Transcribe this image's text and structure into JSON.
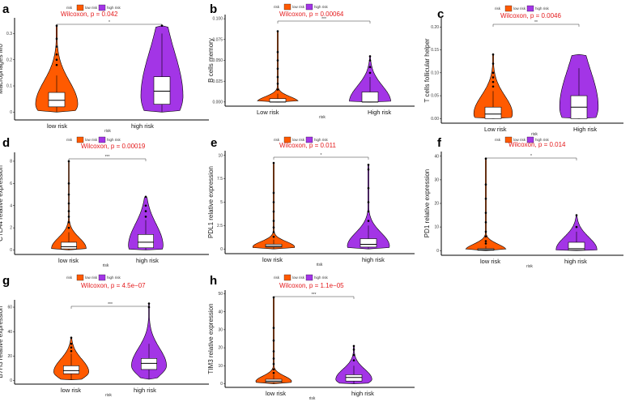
{
  "colors": {
    "low": "#ff5a00",
    "high": "#a335e6",
    "outline": "#000000",
    "pval": "#e41a1c",
    "axis": "#000000"
  },
  "legend": {
    "title": "risk",
    "low": "low risk",
    "high": "high risk"
  },
  "x_title": "risk",
  "chart_data": [
    {
      "panel": "a",
      "type": "violin",
      "ylabel": "Macrophages M0",
      "categories": [
        "low risk",
        "high risk"
      ],
      "yticks": [
        0.0,
        0.1,
        0.2,
        0.3
      ],
      "ylim": [
        -0.03,
        0.36
      ],
      "pvalue": "Wilcoxon, p = 0.042",
      "sig": "*",
      "series": [
        {
          "name": "low risk",
          "median": 0.045,
          "q1": 0.02,
          "q3": 0.075,
          "whisker": [
            0.0,
            0.14
          ],
          "max": 0.33,
          "min": 0.0,
          "mode": 0.03,
          "outliers": [
            0.18,
            0.2,
            0.22,
            0.25,
            0.28,
            0.33
          ]
        },
        {
          "name": "high risk",
          "median": 0.08,
          "q1": 0.03,
          "q3": 0.135,
          "whisker": [
            0.0,
            0.3
          ],
          "max": 0.33,
          "min": 0.0,
          "mode": 0.06,
          "outliers": [
            0.33
          ]
        }
      ]
    },
    {
      "panel": "b",
      "type": "violin",
      "ylabel": "B cells memory",
      "categories": [
        "Low risk",
        "High risk"
      ],
      "yticks": [
        0.0,
        0.025,
        0.05,
        0.075,
        0.1
      ],
      "ytick_labels": [
        "0.000",
        "0.025",
        "0.050",
        "0.075",
        "0.100"
      ],
      "ylim": [
        -0.005,
        0.105
      ],
      "pvalue": "Wilcoxon, p = 0.00064",
      "sig": "***",
      "series": [
        {
          "name": "Low risk",
          "median": 0.0,
          "q1": 0.0,
          "q3": 0.004,
          "whisker": [
            0.0,
            0.01
          ],
          "max": 0.085,
          "min": 0.0,
          "mode": 0.0,
          "outliers": [
            0.015,
            0.022,
            0.03,
            0.04,
            0.05,
            0.06,
            0.085
          ]
        },
        {
          "name": "High risk",
          "median": 0.0,
          "q1": 0.0,
          "q3": 0.012,
          "whisker": [
            0.0,
            0.03
          ],
          "max": 0.055,
          "min": 0.0,
          "mode": 0.0,
          "outliers": [
            0.035,
            0.042,
            0.05,
            0.055
          ]
        }
      ]
    },
    {
      "panel": "c",
      "type": "violin",
      "ylabel": "T cells follicular helper",
      "categories": [
        "Low risk",
        "High risk"
      ],
      "yticks": [
        0.0,
        0.05,
        0.1,
        0.15,
        0.2
      ],
      "ytick_labels": [
        "0.00",
        "0.05",
        "0.10",
        "0.15",
        "0.20"
      ],
      "ylim": [
        -0.01,
        0.22
      ],
      "pvalue": "Wilcoxon, p = 0.0046",
      "sig": "**",
      "series": [
        {
          "name": "Low risk",
          "median": 0.01,
          "q1": 0.0,
          "q3": 0.025,
          "whisker": [
            0.0,
            0.06
          ],
          "max": 0.14,
          "min": 0.0,
          "mode": 0.01,
          "outliers": [
            0.07,
            0.08,
            0.09,
            0.1,
            0.12,
            0.14
          ]
        },
        {
          "name": "High risk",
          "median": 0.025,
          "q1": 0.0,
          "q3": 0.05,
          "whisker": [
            0.0,
            0.11
          ],
          "max": 0.14,
          "min": 0.0,
          "mode": 0.025,
          "outliers": []
        }
      ]
    },
    {
      "panel": "d",
      "type": "violin",
      "ylabel": "CTLA4 relative expression",
      "categories": [
        "low risk",
        "high risk"
      ],
      "yticks": [
        0,
        2,
        4,
        6,
        8
      ],
      "ylim": [
        -0.4,
        8.8
      ],
      "pvalue": "Wilcoxon, p = 0.00019",
      "sig": "***",
      "series": [
        {
          "name": "low risk",
          "median": 0.3,
          "q1": 0.1,
          "q3": 0.7,
          "whisker": [
            0.0,
            1.6
          ],
          "max": 8.0,
          "min": 0.0,
          "mode": 0.15,
          "outliers": [
            2.0,
            2.5,
            3.0,
            3.5,
            4.2,
            5.0,
            6.0,
            8.0
          ]
        },
        {
          "name": "high risk",
          "median": 0.7,
          "q1": 0.2,
          "q3": 1.4,
          "whisker": [
            0.0,
            2.7
          ],
          "max": 4.8,
          "min": 0.0,
          "mode": 0.4,
          "outliers": [
            3.0,
            3.5,
            4.0,
            4.8
          ]
        }
      ]
    },
    {
      "panel": "e",
      "type": "violin",
      "ylabel": "PDL1 relative expression",
      "categories": [
        "low risk",
        "high risk"
      ],
      "yticks": [
        0.0,
        2.5,
        5.0,
        7.5,
        10.0
      ],
      "ylim": [
        -0.5,
        10.5
      ],
      "pvalue": "Wilcoxon, p = 0.011",
      "sig": "*",
      "series": [
        {
          "name": "low risk",
          "median": 0.3,
          "q1": 0.2,
          "q3": 0.5,
          "whisker": [
            0.0,
            1.0
          ],
          "max": 9.2,
          "min": 0.0,
          "mode": 0.2,
          "outliers": [
            1.3,
            1.8,
            2.3,
            3.0,
            4.0,
            5.0,
            6.0,
            9.2
          ]
        },
        {
          "name": "high risk",
          "median": 0.5,
          "q1": 0.2,
          "q3": 1.1,
          "whisker": [
            0.0,
            2.5
          ],
          "max": 9.0,
          "min": 0.0,
          "mode": 0.3,
          "outliers": [
            3.0,
            4.0,
            5.0,
            6.5,
            8.5,
            9.0
          ]
        }
      ]
    },
    {
      "panel": "f",
      "type": "violin",
      "ylabel": "PD1 relative expression",
      "categories": [
        "low risk",
        "high risk"
      ],
      "yticks": [
        0,
        10,
        20,
        30,
        40
      ],
      "ylim": [
        -2,
        42
      ],
      "pvalue": "Wilcoxon, p = 0.014",
      "sig": "*",
      "series": [
        {
          "name": "low risk",
          "median": 0.3,
          "q1": 0.1,
          "q3": 0.8,
          "whisker": [
            0.0,
            2.0
          ],
          "max": 39.0,
          "min": 0.0,
          "mode": 0.2,
          "outliers": [
            3.0,
            4.0,
            6.0,
            8.0,
            12.0,
            16.0,
            22.0,
            28.0,
            39.0
          ]
        },
        {
          "name": "high risk",
          "median": 0.8,
          "q1": 0.2,
          "q3": 3.5,
          "whisker": [
            0.0,
            8.0
          ],
          "max": 15.0,
          "min": 0.0,
          "mode": 0.4,
          "outliers": [
            10.0,
            15.0
          ]
        }
      ]
    },
    {
      "panel": "g",
      "type": "violin",
      "ylabel": "B7H3 relative expression",
      "categories": [
        "low risk",
        "high risk"
      ],
      "yticks": [
        0,
        20,
        40,
        60
      ],
      "ylim": [
        -3,
        66
      ],
      "pvalue": "Wilcoxon, p = 4.5e−07",
      "sig": "***",
      "series": [
        {
          "name": "low risk",
          "median": 8.0,
          "q1": 5.5,
          "q3": 12.0,
          "whisker": [
            0.5,
            22.0
          ],
          "max": 35.0,
          "min": 0.5,
          "mode": 7.0,
          "outliers": [
            24.0,
            27.0,
            30.0,
            35.0
          ]
        },
        {
          "name": "high risk",
          "median": 14.0,
          "q1": 9.0,
          "q3": 18.0,
          "whisker": [
            1.0,
            30.0
          ],
          "max": 63.0,
          "min": 1.0,
          "mode": 12.0,
          "outliers": [
            60.0,
            63.0
          ]
        }
      ]
    },
    {
      "panel": "h",
      "type": "violin",
      "ylabel": "TIM3 relative expression",
      "categories": [
        "low risk",
        "high risk"
      ],
      "yticks": [
        0,
        10,
        20,
        30,
        40,
        50
      ],
      "ylim": [
        -2,
        52
      ],
      "pvalue": "Wilcoxon, p = 1.1e−05",
      "sig": "***",
      "series": [
        {
          "name": "low risk",
          "median": 1.5,
          "q1": 0.8,
          "q3": 2.5,
          "whisker": [
            0.0,
            5.0
          ],
          "max": 48.0,
          "min": 0.0,
          "mode": 1.2,
          "outliers": [
            6.0,
            8.0,
            11.0,
            14.0,
            18.0,
            24.0,
            31.0,
            48.0
          ]
        },
        {
          "name": "high risk",
          "median": 3.5,
          "q1": 1.5,
          "q3": 5.0,
          "whisker": [
            0.0,
            10.0
          ],
          "max": 21.0,
          "min": 0.0,
          "mode": 2.5,
          "outliers": [
            13.0,
            16.0,
            19.0,
            21.0
          ]
        }
      ]
    }
  ]
}
